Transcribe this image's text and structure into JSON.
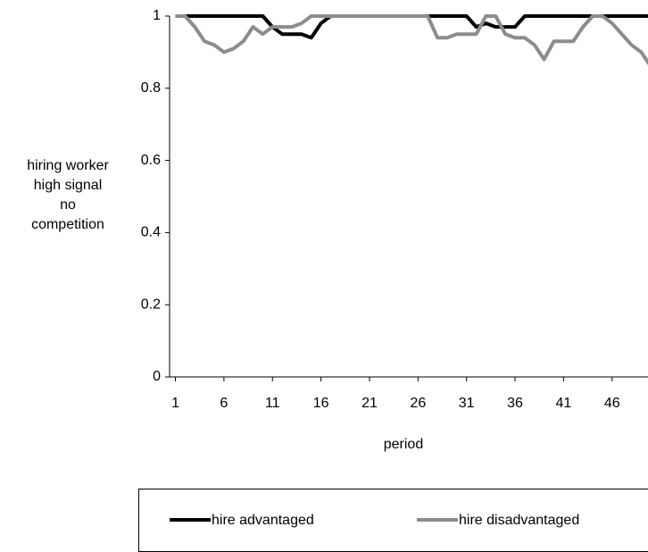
{
  "chart_data": {
    "type": "line",
    "ylabel": [
      "hiring  worker",
      "high signal",
      "no",
      "competition"
    ],
    "xlabel": "period",
    "x": [
      1,
      2,
      3,
      4,
      5,
      6,
      7,
      8,
      9,
      10,
      11,
      12,
      13,
      14,
      15,
      16,
      17,
      18,
      19,
      20,
      21,
      22,
      23,
      24,
      25,
      26,
      27,
      28,
      29,
      30,
      31,
      32,
      33,
      34,
      35,
      36,
      37,
      38,
      39,
      40,
      41,
      42,
      43,
      44,
      45,
      46,
      47,
      48,
      49,
      50
    ],
    "series": [
      {
        "name": "hire advantaged",
        "color": "#000000",
        "values": [
          1,
          1,
          1,
          1,
          1,
          1,
          1,
          1,
          1,
          1,
          0.97,
          0.95,
          0.95,
          0.95,
          0.94,
          0.98,
          1,
          1,
          1,
          1,
          1,
          1,
          1,
          1,
          1,
          1,
          1,
          1,
          1,
          1,
          1,
          0.97,
          0.98,
          0.97,
          0.97,
          0.97,
          1,
          1,
          1,
          1,
          1,
          1,
          1,
          1,
          1,
          1,
          1,
          1,
          1,
          1
        ]
      },
      {
        "name": "hire disadvantaged",
        "color": "#8c8c8c",
        "values": [
          1,
          1,
          0.97,
          0.93,
          0.92,
          0.9,
          0.91,
          0.93,
          0.97,
          0.95,
          0.97,
          0.97,
          0.97,
          0.98,
          1,
          1,
          1,
          1,
          1,
          1,
          1,
          1,
          1,
          1,
          1,
          1,
          1,
          0.94,
          0.94,
          0.95,
          0.95,
          0.95,
          1,
          1,
          0.95,
          0.94,
          0.94,
          0.92,
          0.88,
          0.93,
          0.93,
          0.93,
          0.97,
          1,
          1,
          0.98,
          0.95,
          0.92,
          0.9,
          0.86
        ]
      }
    ],
    "xlim": [
      0.4,
      49.7
    ],
    "xticks": [
      1,
      6,
      11,
      16,
      21,
      26,
      31,
      36,
      41,
      46
    ],
    "ylim": [
      0,
      1
    ],
    "yticks": [
      0,
      0.2,
      0.4,
      0.6,
      0.8,
      1
    ],
    "grid": false,
    "legend": "bottom"
  }
}
